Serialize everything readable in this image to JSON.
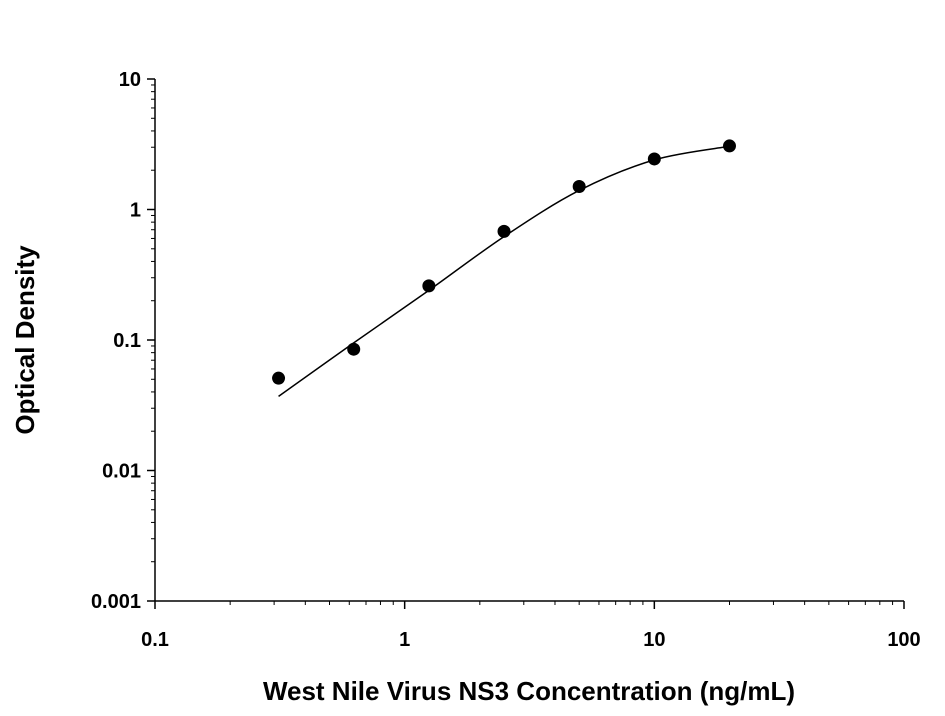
{
  "chart_data": {
    "type": "scatter",
    "title": "",
    "xlabel": "West Nile Virus NS3 Concentration (ng/mL)",
    "ylabel": "Optical Density",
    "x_scale": "log",
    "y_scale": "log",
    "xlim": [
      0.1,
      100
    ],
    "ylim": [
      0.001,
      10
    ],
    "x_ticks": [
      "0.1",
      "1",
      "10",
      "100"
    ],
    "y_ticks": [
      "0.001",
      "0.01",
      "0.1",
      "1",
      "10"
    ],
    "grid": false,
    "legend": "none",
    "series": [
      {
        "x": [
          0.3125,
          0.625,
          1.25,
          2.5,
          5,
          10,
          20
        ],
        "y": [
          0.051,
          0.085,
          0.26,
          0.68,
          1.5,
          2.44,
          3.07
        ],
        "marker": "filled-circle",
        "color": "#000000"
      }
    ],
    "fit_curve": {
      "x": [
        0.3125,
        0.625,
        1.25,
        2.5,
        5,
        10,
        20
      ],
      "y": [
        0.037,
        0.095,
        0.24,
        0.62,
        1.4,
        2.4,
        3.05
      ],
      "color": "#000000"
    }
  }
}
